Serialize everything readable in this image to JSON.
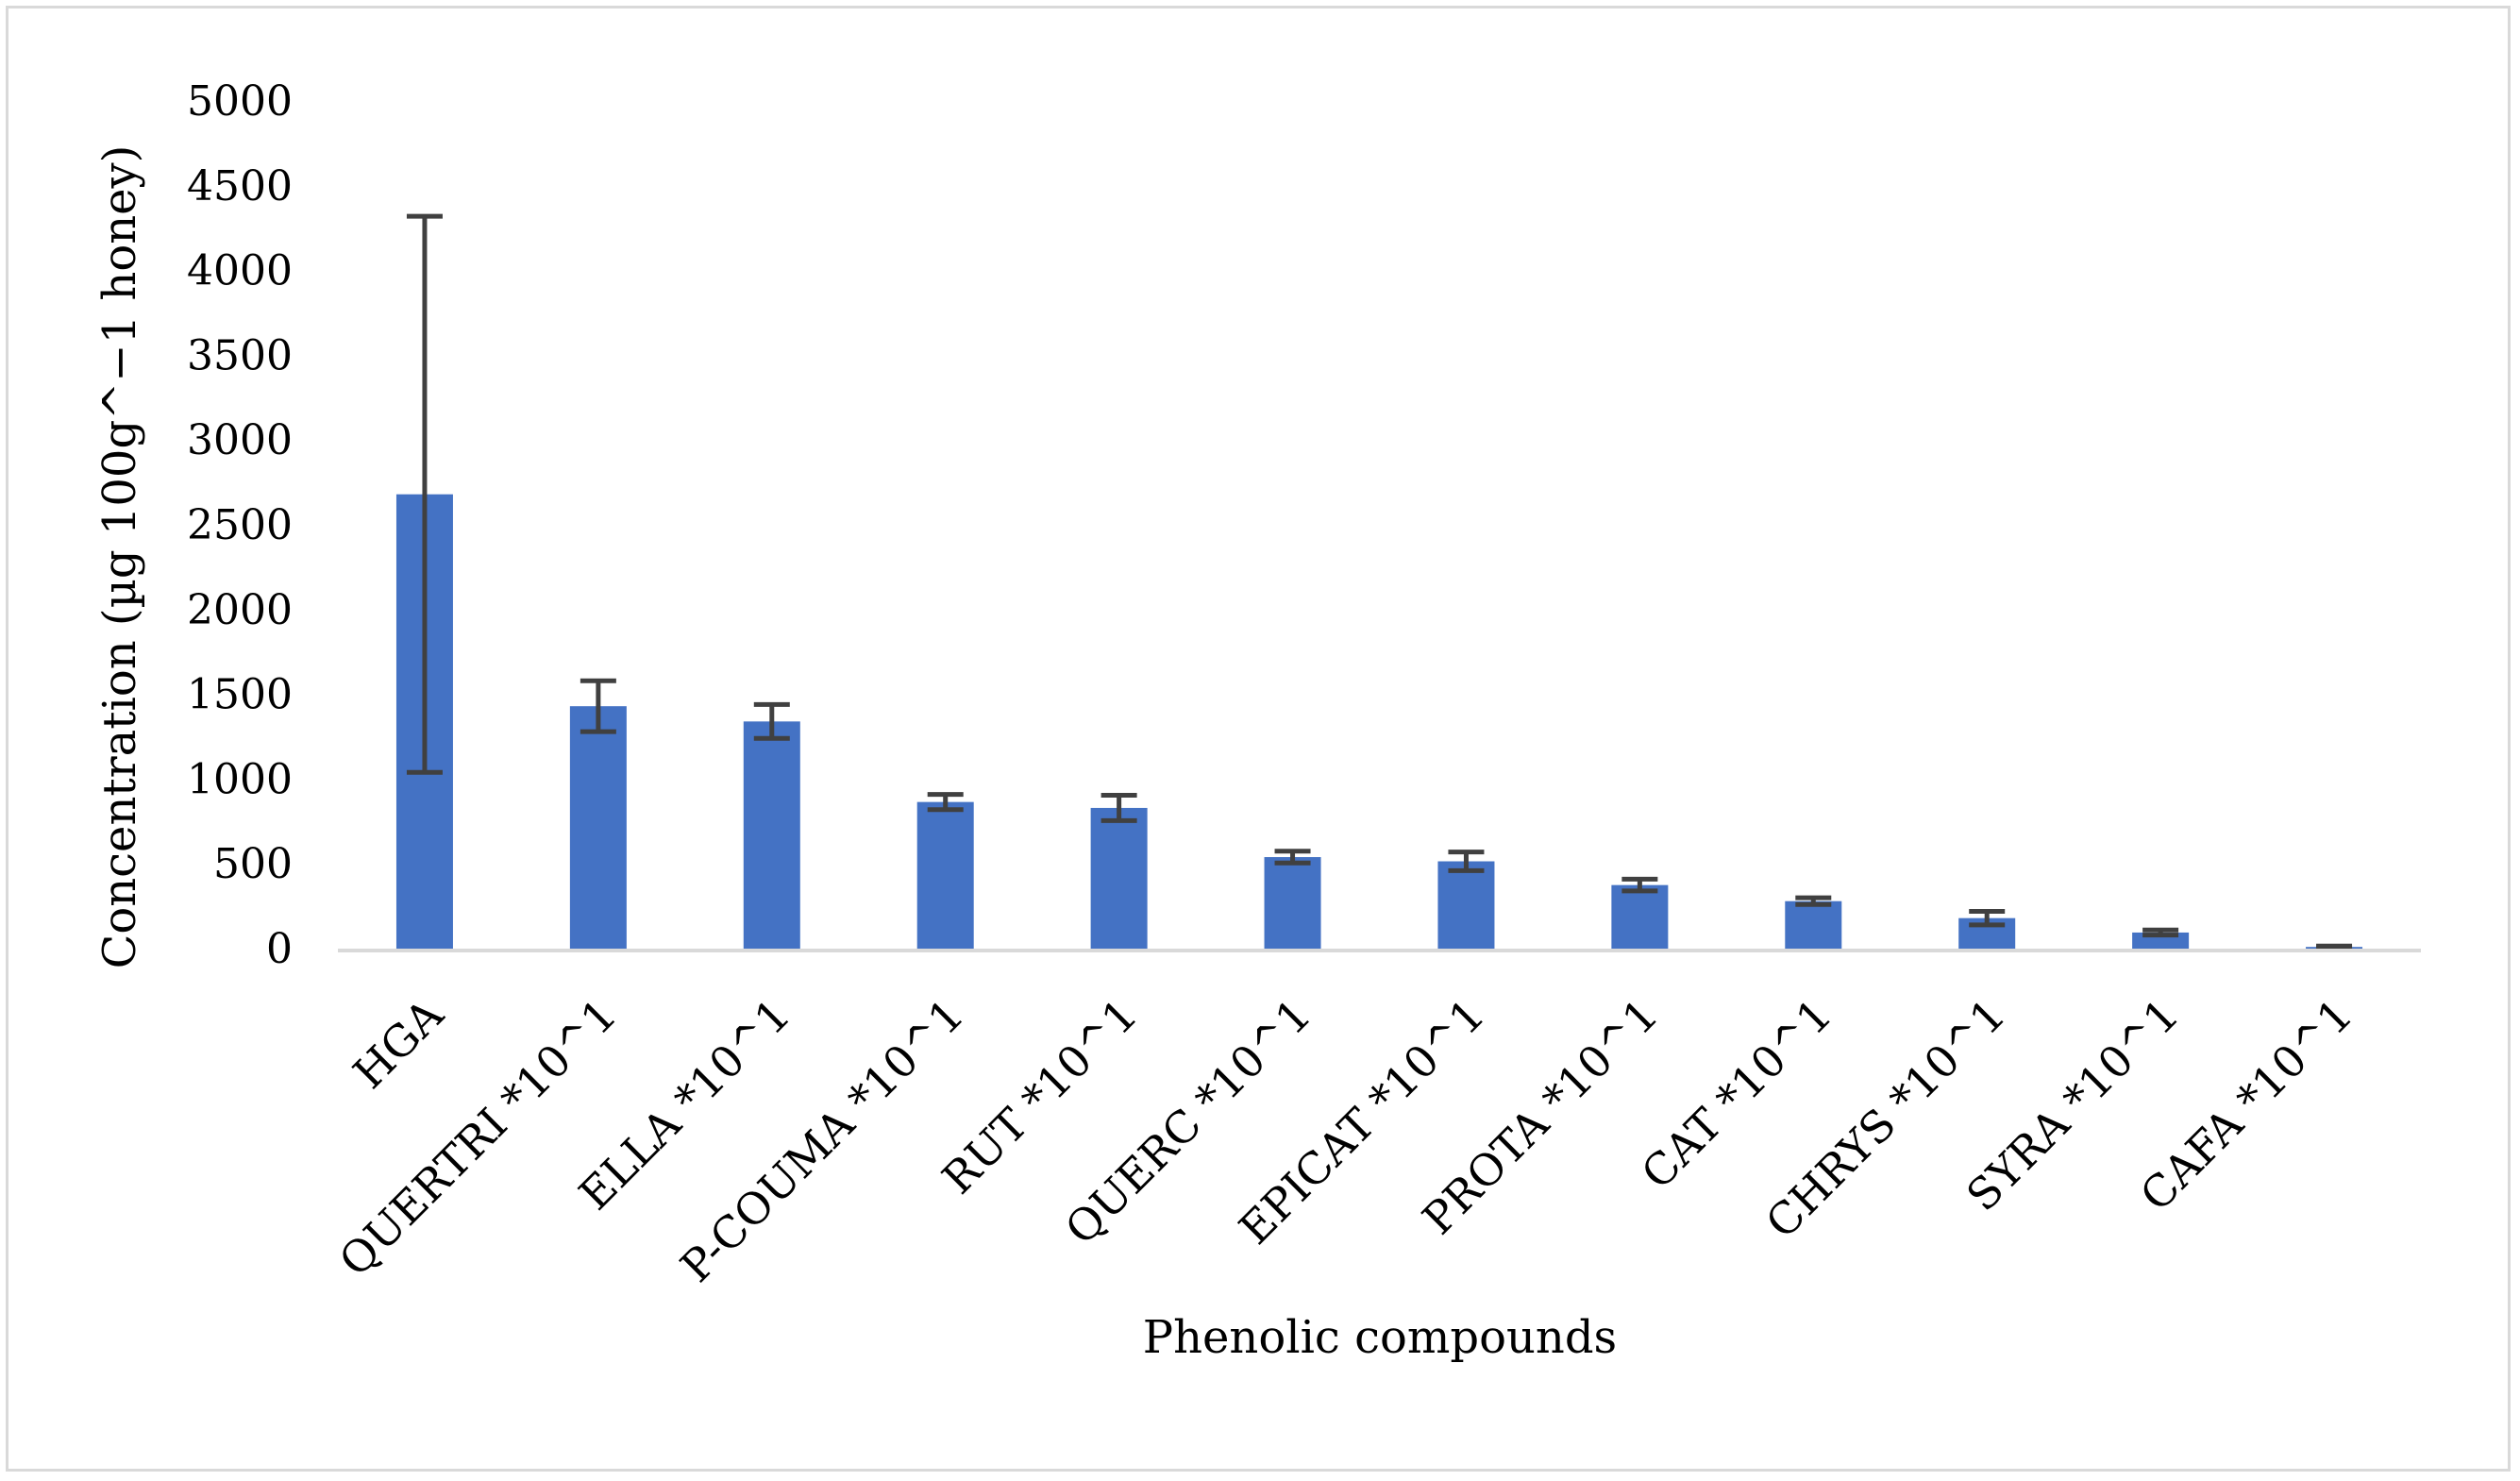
{
  "chart_data": {
    "type": "bar",
    "xlabel": "Phenolic compounds",
    "ylabel": "Concentration (µg 100g^−1 honey)",
    "ylim": [
      0,
      5000
    ],
    "yticks": [
      0,
      500,
      1000,
      1500,
      2000,
      2500,
      3000,
      3500,
      4000,
      4500,
      5000
    ],
    "grid": false,
    "legend": "none",
    "categories": [
      "HGA",
      "QUERTRI *10^1",
      "ELLA *10^1",
      "P-COUMA *10^1",
      "RUT *10^1",
      "QUERC *10^1",
      "EPICAT *10^1",
      "PROTA *10^1",
      "CAT *10^1",
      "CHRYS *10^1",
      "SYRA *10^1",
      "CAFA *10^1"
    ],
    "values": [
      2680,
      1430,
      1340,
      865,
      830,
      540,
      515,
      375,
      280,
      180,
      95,
      10
    ],
    "error": [
      1640,
      150,
      100,
      45,
      75,
      35,
      55,
      35,
      20,
      40,
      15,
      5
    ],
    "colors": {
      "bar": "#4472c4",
      "error_bar": "#404040",
      "axis": "#d9d9d9"
    }
  }
}
